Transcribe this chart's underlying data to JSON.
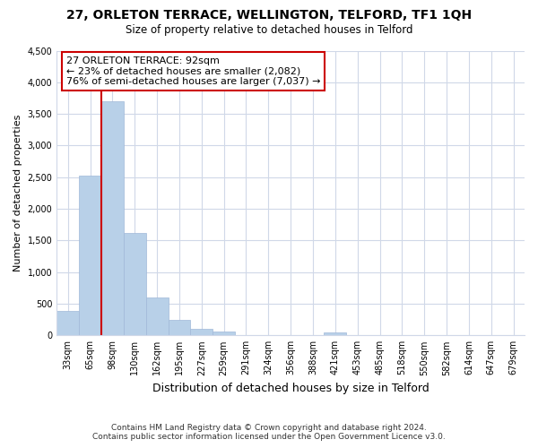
{
  "title": "27, ORLETON TERRACE, WELLINGTON, TELFORD, TF1 1QH",
  "subtitle": "Size of property relative to detached houses in Telford",
  "xlabel": "Distribution of detached houses by size in Telford",
  "ylabel": "Number of detached properties",
  "categories": [
    "33sqm",
    "65sqm",
    "98sqm",
    "130sqm",
    "162sqm",
    "195sqm",
    "227sqm",
    "259sqm",
    "291sqm",
    "324sqm",
    "356sqm",
    "388sqm",
    "421sqm",
    "453sqm",
    "485sqm",
    "518sqm",
    "550sqm",
    "582sqm",
    "614sqm",
    "647sqm",
    "679sqm"
  ],
  "values": [
    380,
    2520,
    3700,
    1620,
    600,
    240,
    100,
    55,
    0,
    0,
    0,
    0,
    50,
    0,
    0,
    0,
    0,
    0,
    0,
    0,
    0
  ],
  "bar_color": "#b8d0e8",
  "bar_edge_color": "#a0b8d8",
  "property_line_index": 2,
  "ylim": [
    0,
    4500
  ],
  "yticks": [
    0,
    500,
    1000,
    1500,
    2000,
    2500,
    3000,
    3500,
    4000,
    4500
  ],
  "annotation_title": "27 ORLETON TERRACE: 92sqm",
  "annotation_line1": "← 23% of detached houses are smaller (2,082)",
  "annotation_line2": "76% of semi-detached houses are larger (7,037) →",
  "box_facecolor": "#ffffff",
  "box_edgecolor": "#cc0000",
  "red_line_color": "#cc0000",
  "footnote1": "Contains HM Land Registry data © Crown copyright and database right 2024.",
  "footnote2": "Contains public sector information licensed under the Open Government Licence v3.0.",
  "background_color": "#ffffff",
  "grid_color": "#d0d8e8",
  "title_fontsize": 10,
  "subtitle_fontsize": 8.5,
  "ylabel_fontsize": 8,
  "xlabel_fontsize": 9,
  "tick_fontsize": 7,
  "annotation_fontsize": 8,
  "footnote_fontsize": 6.5
}
